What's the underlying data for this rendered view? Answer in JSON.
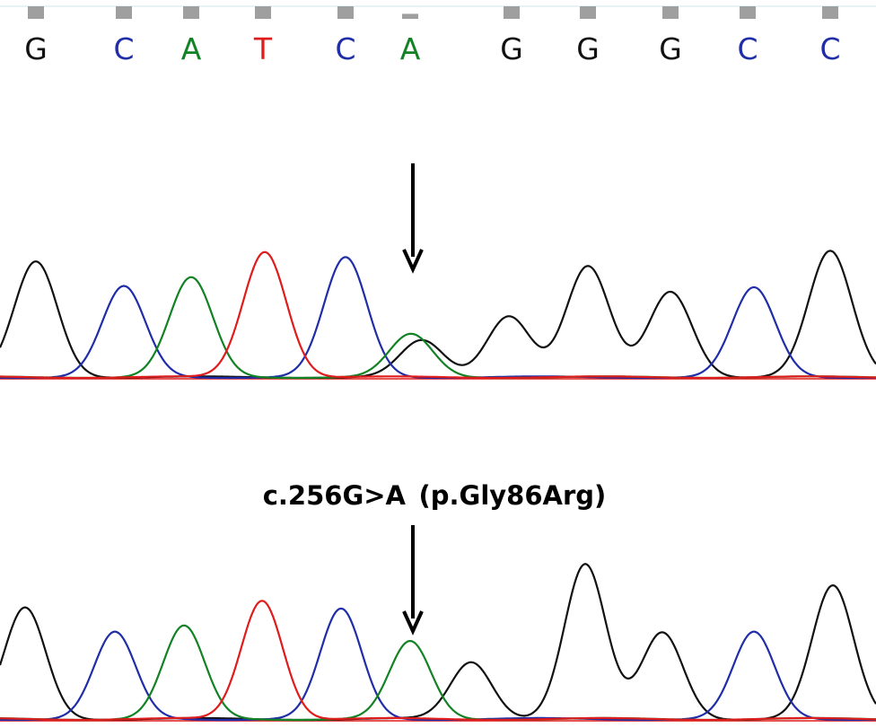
{
  "colors": {
    "G": "#111111",
    "C": "#1f2ea8",
    "A": "#128224",
    "T": "#e01b1b",
    "quality_bar": "#9f9f9f",
    "top_rule": "#cfe4ea",
    "arrow": "#000000"
  },
  "mutation_label": "c.256G>A (p.Gly86Arg)",
  "chart_data": [
    {
      "type": "line",
      "panel": "sequence-reference",
      "bases": [
        "G",
        "C",
        "A",
        "T",
        "C",
        "A",
        "G",
        "G",
        "G",
        "C",
        "C"
      ],
      "base_positions": [
        40,
        138,
        213,
        293,
        385,
        457,
        570,
        655,
        747,
        833,
        925
      ],
      "quality": [
        1,
        1,
        1,
        1,
        1,
        0.4,
        1,
        1,
        1,
        1,
        1
      ]
    },
    {
      "type": "line",
      "panel": "chromatogram-1",
      "x_range": [
        0,
        976
      ],
      "y_range": [
        0,
        1
      ],
      "arrow_at": 460,
      "series": [
        {
          "channel": "G",
          "peaks": [
            [
              40,
              0.92
            ],
            [
              470,
              0.29
            ],
            [
              567,
              0.49
            ],
            [
              655,
              0.88
            ],
            [
              747,
              0.68
            ],
            [
              925,
              1.0
            ]
          ]
        },
        {
          "channel": "C",
          "peaks": [
            [
              138,
              0.72
            ],
            [
              385,
              0.95
            ],
            [
              840,
              0.71
            ]
          ]
        },
        {
          "channel": "A",
          "peaks": [
            [
              213,
              0.79
            ],
            [
              458,
              0.34
            ]
          ]
        },
        {
          "channel": "T",
          "peaks": [
            [
              295,
              1.0
            ]
          ]
        }
      ]
    },
    {
      "type": "line",
      "panel": "chromatogram-2",
      "x_range": [
        0,
        976
      ],
      "y_range": [
        0,
        1
      ],
      "arrow_at": 460,
      "series": [
        {
          "channel": "G",
          "peaks": [
            [
              28,
              0.72
            ],
            [
              525,
              0.37
            ],
            [
              652,
              1.0
            ],
            [
              738,
              0.56
            ],
            [
              928,
              0.86
            ]
          ]
        },
        {
          "channel": "C",
          "peaks": [
            [
              128,
              0.56
            ],
            [
              380,
              0.71
            ],
            [
              840,
              0.56
            ]
          ]
        },
        {
          "channel": "A",
          "peaks": [
            [
              205,
              0.6
            ],
            [
              457,
              0.5
            ]
          ]
        },
        {
          "channel": "T",
          "peaks": [
            [
              292,
              0.77
            ]
          ]
        }
      ]
    }
  ]
}
